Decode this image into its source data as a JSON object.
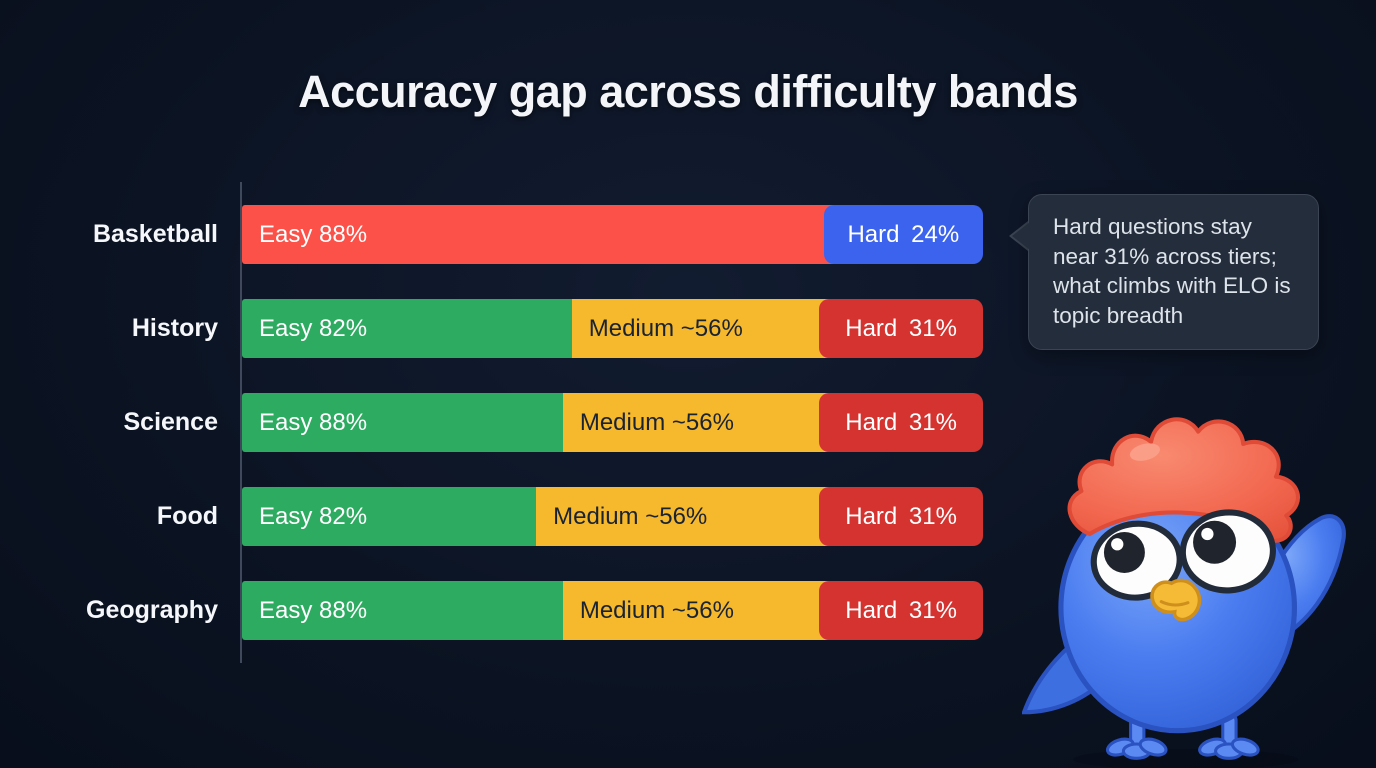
{
  "page": {
    "background": "#0b1322",
    "accent_colors": {
      "easy_green": "#2dac61",
      "easy_red": "#fb5149",
      "medium_yellow": "#f6b82d",
      "hard_red": "#d43330",
      "hard_blue": "#3b63ee",
      "axis": "#3e4a5c"
    }
  },
  "title": "Accuracy gap across difficulty bands",
  "chart_data": {
    "type": "bar",
    "orientation": "horizontal-stacked",
    "title": "Accuracy gap across difficulty bands",
    "grid": false,
    "legend": "none",
    "bands": [
      "Easy",
      "Medium",
      "Hard"
    ],
    "categories": [
      "Basketball",
      "History",
      "Science",
      "Food",
      "Geography"
    ],
    "rows": [
      {
        "category": "Basketball",
        "segments": [
          {
            "band": "Easy",
            "label": "Easy 88%",
            "value": 88,
            "color": "#fb5149",
            "text_color": "#ffffff",
            "width_pct": 78.5,
            "align": "left"
          },
          {
            "band": "Hard",
            "label": "Hard 24%",
            "value": 24,
            "color": "#3b63ee",
            "text_color": "#ffffff",
            "width_pct": 21.5,
            "align": "center",
            "rounded": true
          }
        ]
      },
      {
        "category": "History",
        "segments": [
          {
            "band": "Easy",
            "label": "Easy 82%",
            "value": 82,
            "color": "#2dac61",
            "text_color": "#ffffff",
            "width_pct": 44.5,
            "align": "left"
          },
          {
            "band": "Medium",
            "label": "Medium ~56%",
            "value": 56,
            "color": "#f6b82d",
            "text_color": "#1a2332",
            "width_pct": 33.4,
            "align": "left"
          },
          {
            "band": "Hard",
            "label": "Hard 31%",
            "value": 31,
            "color": "#d43330",
            "text_color": "#ffffff",
            "width_pct": 22.1,
            "align": "center",
            "rounded": true
          }
        ]
      },
      {
        "category": "Science",
        "segments": [
          {
            "band": "Easy",
            "label": "Easy 88%",
            "value": 88,
            "color": "#2dac61",
            "text_color": "#ffffff",
            "width_pct": 43.3,
            "align": "left"
          },
          {
            "band": "Medium",
            "label": "Medium ~56%",
            "value": 56,
            "color": "#f6b82d",
            "text_color": "#1a2332",
            "width_pct": 34.6,
            "align": "left"
          },
          {
            "band": "Hard",
            "label": "Hard 31%",
            "value": 31,
            "color": "#d43330",
            "text_color": "#ffffff",
            "width_pct": 22.1,
            "align": "center",
            "rounded": true
          }
        ]
      },
      {
        "category": "Food",
        "segments": [
          {
            "band": "Easy",
            "label": "Easy 82%",
            "value": 82,
            "color": "#2dac61",
            "text_color": "#ffffff",
            "width_pct": 39.7,
            "align": "left"
          },
          {
            "band": "Medium",
            "label": "Medium ~56%",
            "value": 56,
            "color": "#f6b82d",
            "text_color": "#1a2332",
            "width_pct": 38.2,
            "align": "left"
          },
          {
            "band": "Hard",
            "label": "Hard 31%",
            "value": 31,
            "color": "#d43330",
            "text_color": "#ffffff",
            "width_pct": 22.1,
            "align": "center",
            "rounded": true
          }
        ]
      },
      {
        "category": "Geography",
        "segments": [
          {
            "band": "Easy",
            "label": "Easy 88%",
            "value": 88,
            "color": "#2dac61",
            "text_color": "#ffffff",
            "width_pct": 43.3,
            "align": "left"
          },
          {
            "band": "Medium",
            "label": "Medium ~56%",
            "value": 56,
            "color": "#f6b82d",
            "text_color": "#1a2332",
            "width_pct": 34.6,
            "align": "left"
          },
          {
            "band": "Hard",
            "label": "Hard 31%",
            "value": 31,
            "color": "#d43330",
            "text_color": "#ffffff",
            "width_pct": 22.1,
            "align": "center",
            "rounded": true
          }
        ]
      }
    ],
    "annotation": "Hard questions stay near 31% across tiers; what climbs with ELO is topic breadth"
  },
  "callout": {
    "text": "Hard questions stay near 31% across tiers; what climbs with ELO is topic breadth"
  },
  "mascot": {
    "name": "blue-bird-mascot",
    "colors": {
      "body": "#4a7cf0",
      "crest": "#f2674f",
      "beak": "#f5bb36"
    }
  }
}
